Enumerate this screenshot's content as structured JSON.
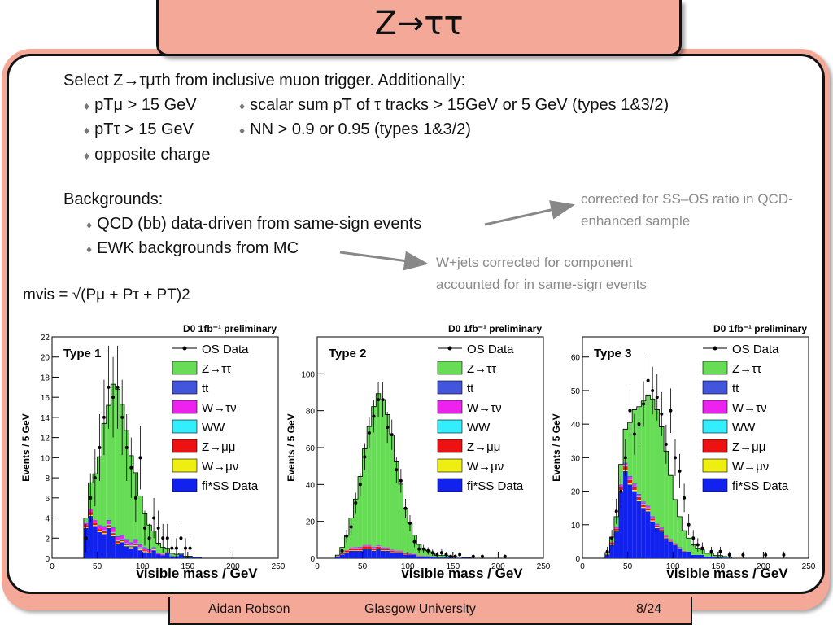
{
  "slide": {
    "title": "Z→ττ",
    "intro": "Select Z→τμτh from inclusive muon trigger.  Additionally:",
    "cuts_left": [
      "pTμ > 15 GeV",
      "pTτ > 15 GeV",
      "opposite charge"
    ],
    "cuts_right": [
      "scalar sum pT of τ tracks > 15GeV or 5 GeV (types 1&3/2)",
      "NN > 0.9 or 0.95 (types 1&3/2)"
    ],
    "backgrounds_heading": "Backgrounds:",
    "backgrounds": [
      "QCD (bb) data-driven from same-sign events",
      "EWK backgrounds from MC"
    ],
    "notes": [
      "corrected for SS–OS ratio in QCD-enhanced sample",
      "W+jets corrected for component accounted for in same-sign events"
    ],
    "formula": "mvis = √(Pμ + Pτ + PT)2",
    "footer": {
      "author": "Aidan Robson",
      "institution": "Glasgow University",
      "page": "8/24"
    }
  },
  "legend": [
    {
      "label": "OS Data",
      "color": "#000000",
      "marker": "point"
    },
    {
      "label": "Z→ττ",
      "color": "#66dd55"
    },
    {
      "label": "tt",
      "color": "#4455dd"
    },
    {
      "label": "W→τν",
      "color": "#ee22ee"
    },
    {
      "label": "WW",
      "color": "#33eeff"
    },
    {
      "label": "Z→μμ",
      "color": "#ee1111"
    },
    {
      "label": "W→μν",
      "color": "#eeee11"
    },
    {
      "label": "fi*SS Data",
      "color": "#1122ee"
    }
  ],
  "chart_data": [
    {
      "type": "bar",
      "panel_label": "Type 1",
      "header": "D0 1fb⁻¹ preliminary",
      "xlabel": "visible mass / GeV",
      "ylabel": "Events / 5 GeV",
      "xlim": [
        0,
        250
      ],
      "ylim": [
        0,
        22
      ],
      "xticks": [
        0,
        50,
        100,
        150,
        200,
        250
      ],
      "yticks": [
        0,
        2,
        4,
        6,
        8,
        10,
        12,
        14,
        16,
        18,
        20,
        22
      ],
      "x": [
        37.5,
        42.5,
        47.5,
        52.5,
        57.5,
        62.5,
        67.5,
        72.5,
        77.5,
        82.5,
        87.5,
        92.5,
        97.5,
        102.5,
        107.5,
        112.5,
        117.5,
        122.5,
        127.5,
        132.5,
        137.5,
        142.5,
        147.5,
        152.5,
        157.5,
        162.5
      ],
      "series": [
        {
          "name": "fi*SS Data",
          "values": [
            3.0,
            4.2,
            3.2,
            2.6,
            2.4,
            3.0,
            2.2,
            1.4,
            1.6,
            1.2,
            1.0,
            1.2,
            0.8,
            0.6,
            0.5,
            0.8,
            0.4,
            0.3,
            0.5,
            0.2,
            0.2,
            0.4,
            0.1,
            0.1,
            0.1,
            0.1
          ]
        },
        {
          "name": "W→μν",
          "values": [
            0.1,
            0.1,
            0.1,
            0.1,
            0.1,
            0.1,
            0.1,
            0.1,
            0.1,
            0.1,
            0.1,
            0.1,
            0.1,
            0.1,
            0.1,
            0.1,
            0,
            0,
            0,
            0,
            0,
            0,
            0,
            0,
            0,
            0
          ]
        },
        {
          "name": "Z→μμ",
          "values": [
            0.2,
            0.3,
            0.2,
            0.2,
            0.2,
            0.2,
            0.2,
            0.2,
            0.1,
            0.1,
            0.1,
            0.1,
            0.1,
            0.1,
            0,
            0,
            0,
            0,
            0,
            0,
            0,
            0,
            0,
            0,
            0,
            0
          ]
        },
        {
          "name": "WW",
          "values": [
            0,
            0,
            0,
            0,
            0.1,
            0.1,
            0.1,
            0.1,
            0.1,
            0.1,
            0.1,
            0.1,
            0.1,
            0,
            0,
            0,
            0,
            0,
            0,
            0,
            0,
            0,
            0,
            0,
            0,
            0
          ]
        },
        {
          "name": "W→τν",
          "values": [
            0.2,
            0.3,
            0.3,
            0.3,
            0.3,
            0.3,
            0.4,
            0.3,
            0.3,
            0.3,
            0.2,
            0.3,
            0.2,
            0.2,
            0.2,
            0.1,
            0.1,
            0.1,
            0.1,
            0,
            0,
            0,
            0,
            0,
            0,
            0
          ]
        },
        {
          "name": "tt",
          "values": [
            0,
            0,
            0,
            0.1,
            0.1,
            0.1,
            0.1,
            0.1,
            0.1,
            0.1,
            0.1,
            0.1,
            0.1,
            0.1,
            0.1,
            0.1,
            0,
            0,
            0,
            0,
            0,
            0,
            0,
            0,
            0,
            0
          ]
        },
        {
          "name": "Z→ττ",
          "values": [
            0.5,
            2.6,
            4.6,
            6.8,
            10.2,
            11.4,
            14.2,
            14.6,
            13.0,
            10.8,
            8.6,
            6.6,
            4.8,
            3.4,
            2.4,
            1.6,
            1.0,
            0.7,
            0.4,
            0.3,
            0.2,
            0.1,
            0.1,
            0.1,
            0,
            0
          ]
        }
      ],
      "data_points": {
        "name": "OS Data",
        "x": [
          37.5,
          42.5,
          47.5,
          52.5,
          57.5,
          62.5,
          67.5,
          72.5,
          77.5,
          82.5,
          87.5,
          92.5,
          97.5,
          102.5,
          107.5,
          112.5,
          117.5,
          122.5,
          127.5,
          132.5,
          137.5,
          142.5,
          147.5,
          152.5
        ],
        "y": [
          2,
          6,
          8,
          11,
          14,
          17,
          16,
          17,
          14,
          11,
          9,
          6,
          10,
          3,
          2,
          4,
          3,
          2,
          2,
          1,
          1,
          2,
          1,
          1
        ]
      }
    },
    {
      "type": "bar",
      "panel_label": "Type 2",
      "header": "D0 1fb⁻¹ preliminary",
      "xlabel": "visible mass / GeV",
      "ylabel": "Events / 5 GeV",
      "xlim": [
        0,
        250
      ],
      "ylim": [
        0,
        120
      ],
      "xticks": [
        0,
        50,
        100,
        150,
        200,
        250
      ],
      "yticks": [
        0,
        20,
        40,
        60,
        80,
        100
      ],
      "x": [
        22.5,
        27.5,
        32.5,
        37.5,
        42.5,
        47.5,
        52.5,
        57.5,
        62.5,
        67.5,
        72.5,
        77.5,
        82.5,
        87.5,
        92.5,
        97.5,
        102.5,
        107.5,
        112.5,
        117.5,
        122.5,
        127.5,
        132.5,
        137.5,
        142.5,
        147.5,
        152.5,
        157.5,
        162.5,
        167.5
      ],
      "series": [
        {
          "name": "fi*SS Data",
          "values": [
            1,
            2,
            3,
            4,
            4,
            4,
            5,
            5,
            4,
            5,
            4,
            4,
            3,
            3,
            3,
            2,
            2,
            2,
            1,
            1,
            1,
            1,
            0.5,
            0.5,
            0.5,
            0.5,
            0.3,
            0.3,
            0.2,
            0.2
          ]
        },
        {
          "name": "W→μν",
          "values": [
            0,
            0.2,
            0.3,
            0.3,
            0.3,
            0.3,
            0.3,
            0.3,
            0.3,
            0.3,
            0.3,
            0.3,
            0.3,
            0.2,
            0.2,
            0.2,
            0.1,
            0.1,
            0.1,
            0,
            0,
            0,
            0,
            0,
            0,
            0,
            0,
            0,
            0,
            0
          ]
        },
        {
          "name": "Z→μμ",
          "values": [
            0.2,
            0.5,
            0.8,
            1.0,
            1.0,
            1.2,
            1.2,
            1.2,
            1.0,
            1.0,
            0.8,
            0.8,
            0.7,
            0.5,
            0.5,
            0.4,
            0.3,
            0.2,
            0.2,
            0.1,
            0.1,
            0,
            0,
            0,
            0,
            0,
            0,
            0,
            0,
            0
          ]
        },
        {
          "name": "WW",
          "values": [
            0,
            0,
            0,
            0.1,
            0.2,
            0.2,
            0.2,
            0.2,
            0.2,
            0.2,
            0.2,
            0.2,
            0.2,
            0.1,
            0.1,
            0.1,
            0.1,
            0,
            0,
            0,
            0,
            0,
            0,
            0,
            0,
            0,
            0,
            0,
            0,
            0
          ]
        },
        {
          "name": "W→τν",
          "values": [
            0,
            0.2,
            0.3,
            0.5,
            0.5,
            0.5,
            0.5,
            0.5,
            0.5,
            0.5,
            0.5,
            0.4,
            0.4,
            0.3,
            0.3,
            0.2,
            0.2,
            0.1,
            0.1,
            0.1,
            0,
            0,
            0,
            0,
            0,
            0,
            0,
            0,
            0,
            0
          ]
        },
        {
          "name": "tt",
          "values": [
            0,
            0,
            0,
            0,
            0.1,
            0.1,
            0.1,
            0.2,
            0.2,
            0.2,
            0.2,
            0.2,
            0.2,
            0.2,
            0.1,
            0.1,
            0.1,
            0.1,
            0.1,
            0.1,
            0,
            0,
            0,
            0,
            0,
            0,
            0,
            0,
            0,
            0
          ]
        },
        {
          "name": "Z→ττ",
          "values": [
            0.5,
            3,
            8,
            16,
            26,
            38,
            52,
            64,
            76,
            82,
            80,
            72,
            62,
            48,
            36,
            24,
            16,
            10,
            6,
            4,
            3,
            2,
            1,
            1,
            1,
            0.5,
            0.5,
            0.3,
            0.2,
            0.2
          ]
        }
      ],
      "data_points": {
        "name": "OS Data",
        "x": [
          27.5,
          32.5,
          37.5,
          42.5,
          47.5,
          52.5,
          57.5,
          62.5,
          67.5,
          72.5,
          77.5,
          82.5,
          87.5,
          92.5,
          97.5,
          102.5,
          107.5,
          112.5,
          117.5,
          122.5,
          127.5,
          132.5,
          137.5,
          142.5,
          147.5,
          152.5,
          157.5,
          172.5,
          182.5,
          207.5
        ],
        "y": [
          4,
          12,
          17,
          30,
          40,
          55,
          68,
          77,
          86,
          86,
          71,
          67,
          48,
          42,
          27,
          19,
          9,
          5,
          5,
          4,
          3,
          2,
          3,
          2,
          1,
          1,
          2,
          1,
          1,
          1
        ]
      }
    },
    {
      "type": "bar",
      "panel_label": "Type 3",
      "header": "D0 1fb⁻¹ preliminary",
      "xlabel": "visible mass / GeV",
      "ylabel": "Events / 5 GeV",
      "xlim": [
        0,
        250
      ],
      "ylim": [
        0,
        66
      ],
      "xticks": [
        0,
        50,
        100,
        150,
        200,
        250
      ],
      "yticks": [
        0,
        10,
        20,
        30,
        40,
        50,
        60
      ],
      "x": [
        27.5,
        32.5,
        37.5,
        42.5,
        47.5,
        52.5,
        57.5,
        62.5,
        67.5,
        72.5,
        77.5,
        82.5,
        87.5,
        92.5,
        97.5,
        102.5,
        107.5,
        112.5,
        117.5,
        122.5,
        127.5,
        132.5,
        137.5,
        142.5,
        147.5,
        152.5,
        157.5,
        162.5
      ],
      "series": [
        {
          "name": "fi*SS Data",
          "values": [
            1,
            4,
            8,
            20,
            26,
            22,
            20,
            17,
            15,
            14,
            11,
            9,
            8,
            6,
            5,
            4,
            3,
            2,
            2,
            1,
            1,
            1,
            0.5,
            0.5,
            0.3,
            0.3,
            0.2,
            0.2
          ]
        },
        {
          "name": "W→μν",
          "values": [
            0,
            0.2,
            0.3,
            0.4,
            0.4,
            0.4,
            0.4,
            0.4,
            0.3,
            0.3,
            0.3,
            0.3,
            0.2,
            0.2,
            0.2,
            0.1,
            0.1,
            0,
            0,
            0,
            0,
            0,
            0,
            0,
            0,
            0,
            0,
            0
          ]
        },
        {
          "name": "Z→μμ",
          "values": [
            0.2,
            0.4,
            0.6,
            0.8,
            1.0,
            1.0,
            0.8,
            0.8,
            0.7,
            0.6,
            0.5,
            0.4,
            0.4,
            0.3,
            0.2,
            0.2,
            0.1,
            0.1,
            0,
            0,
            0,
            0,
            0,
            0,
            0,
            0,
            0,
            0
          ]
        },
        {
          "name": "WW",
          "values": [
            0,
            0,
            0.1,
            0.1,
            0.2,
            0.2,
            0.2,
            0.2,
            0.2,
            0.2,
            0.1,
            0.1,
            0.1,
            0.1,
            0,
            0,
            0,
            0,
            0,
            0,
            0,
            0,
            0,
            0,
            0,
            0,
            0,
            0
          ]
        },
        {
          "name": "W→τν",
          "values": [
            0,
            0.2,
            0.3,
            0.5,
            0.6,
            0.6,
            0.6,
            0.5,
            0.5,
            0.4,
            0.4,
            0.3,
            0.3,
            0.2,
            0.2,
            0.1,
            0.1,
            0.1,
            0,
            0,
            0,
            0,
            0,
            0,
            0,
            0,
            0,
            0
          ]
        },
        {
          "name": "tt",
          "values": [
            0,
            0,
            0.1,
            0.2,
            0.3,
            0.3,
            0.3,
            0.3,
            0.2,
            0.2,
            0.2,
            0.2,
            0.2,
            0.1,
            0.1,
            0.1,
            0.1,
            0,
            0,
            0,
            0,
            0,
            0,
            0,
            0,
            0,
            0,
            0
          ]
        },
        {
          "name": "Z→ττ",
          "values": [
            0.5,
            1.5,
            3,
            6,
            10,
            16,
            22,
            26,
            30,
            33,
            35,
            34,
            30,
            25,
            19,
            13,
            9,
            6,
            4,
            3,
            2,
            1.5,
            1,
            1,
            0.5,
            0.5,
            0.3,
            0.2
          ]
        }
      ],
      "data_points": {
        "name": "OS Data",
        "x": [
          27.5,
          32.5,
          37.5,
          42.5,
          47.5,
          52.5,
          57.5,
          62.5,
          67.5,
          72.5,
          77.5,
          82.5,
          87.5,
          92.5,
          97.5,
          102.5,
          107.5,
          112.5,
          117.5,
          122.5,
          127.5,
          132.5,
          142.5,
          152.5,
          162.5,
          177.5,
          202.5,
          222.5
        ],
        "y": [
          2,
          6,
          14,
          20,
          30,
          44,
          37,
          40,
          46,
          53,
          50,
          48,
          43,
          34,
          44,
          30,
          26,
          18,
          10,
          6,
          4,
          3,
          2,
          2,
          1,
          1,
          1,
          1
        ]
      }
    }
  ]
}
